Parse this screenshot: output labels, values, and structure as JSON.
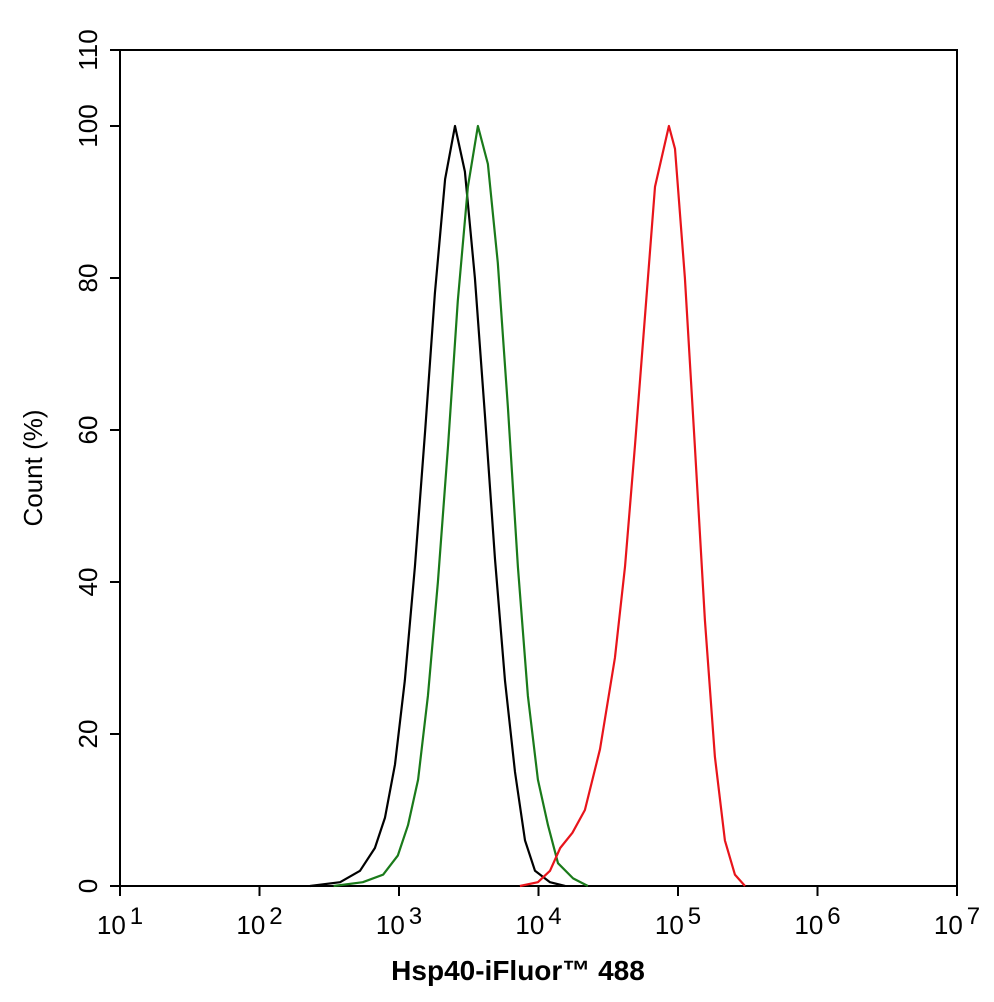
{
  "chart_data": {
    "type": "line",
    "x_label": "Hsp40-iFluor™ 488",
    "y_label": "Count  (%)",
    "log_x": true,
    "xlim": [
      10,
      10000000
    ],
    "ylim": [
      0,
      110
    ],
    "xticks": [
      {
        "value": 10,
        "label": "10",
        "sup": "1"
      },
      {
        "value": 100,
        "label": "10",
        "sup": "2"
      },
      {
        "value": 1000,
        "label": "10",
        "sup": "3"
      },
      {
        "value": 10000,
        "label": "10",
        "sup": "4"
      },
      {
        "value": 100000,
        "label": "10",
        "sup": "5"
      },
      {
        "value": 1000000,
        "label": "10",
        "sup": "6"
      },
      {
        "value": 10000000,
        "label": "10",
        "sup": "7"
      }
    ],
    "yticks": [
      0,
      20,
      40,
      60,
      80,
      100,
      110
    ],
    "series": [
      {
        "color": "#000000",
        "x": [
          230,
          378,
          525,
          672,
          794,
          936,
          1100,
          1300,
          1540,
          1810,
          2140,
          2520,
          2970,
          3500,
          4130,
          4880,
          5750,
          6790,
          8000,
          9440,
          12100,
          15500
        ],
        "values": [
          0,
          0.5,
          2,
          5,
          9,
          16,
          27,
          42,
          60,
          78,
          93,
          100,
          94,
          80,
          62,
          43,
          27,
          15,
          6,
          2,
          0.5,
          0
        ]
      },
      {
        "color": "#1a7a1a",
        "x": [
          340,
          550,
          770,
          980,
          1160,
          1370,
          1610,
          1900,
          2250,
          2640,
          3120,
          3680,
          4340,
          5110,
          6030,
          7120,
          8400,
          9900,
          11700,
          13800,
          17700,
          22600
        ],
        "values": [
          0,
          0.5,
          1.5,
          4,
          8,
          14,
          25,
          40,
          58,
          77,
          92,
          100,
          95,
          82,
          63,
          42,
          25,
          14,
          8,
          3,
          1,
          0
        ]
      },
      {
        "color": "#e8141b",
        "x": [
          7360,
          9900,
          12100,
          14300,
          17500,
          21500,
          27600,
          35300,
          41700,
          49200,
          58000,
          68400,
          86100,
          95100,
          112000,
          132000,
          156000,
          184000,
          217000,
          256000,
          302000
        ],
        "values": [
          0,
          0.5,
          2,
          5,
          7,
          10,
          18,
          30,
          42,
          58,
          75,
          92,
          100,
          97,
          80,
          58,
          35,
          17,
          6,
          1.5,
          0
        ]
      }
    ]
  }
}
